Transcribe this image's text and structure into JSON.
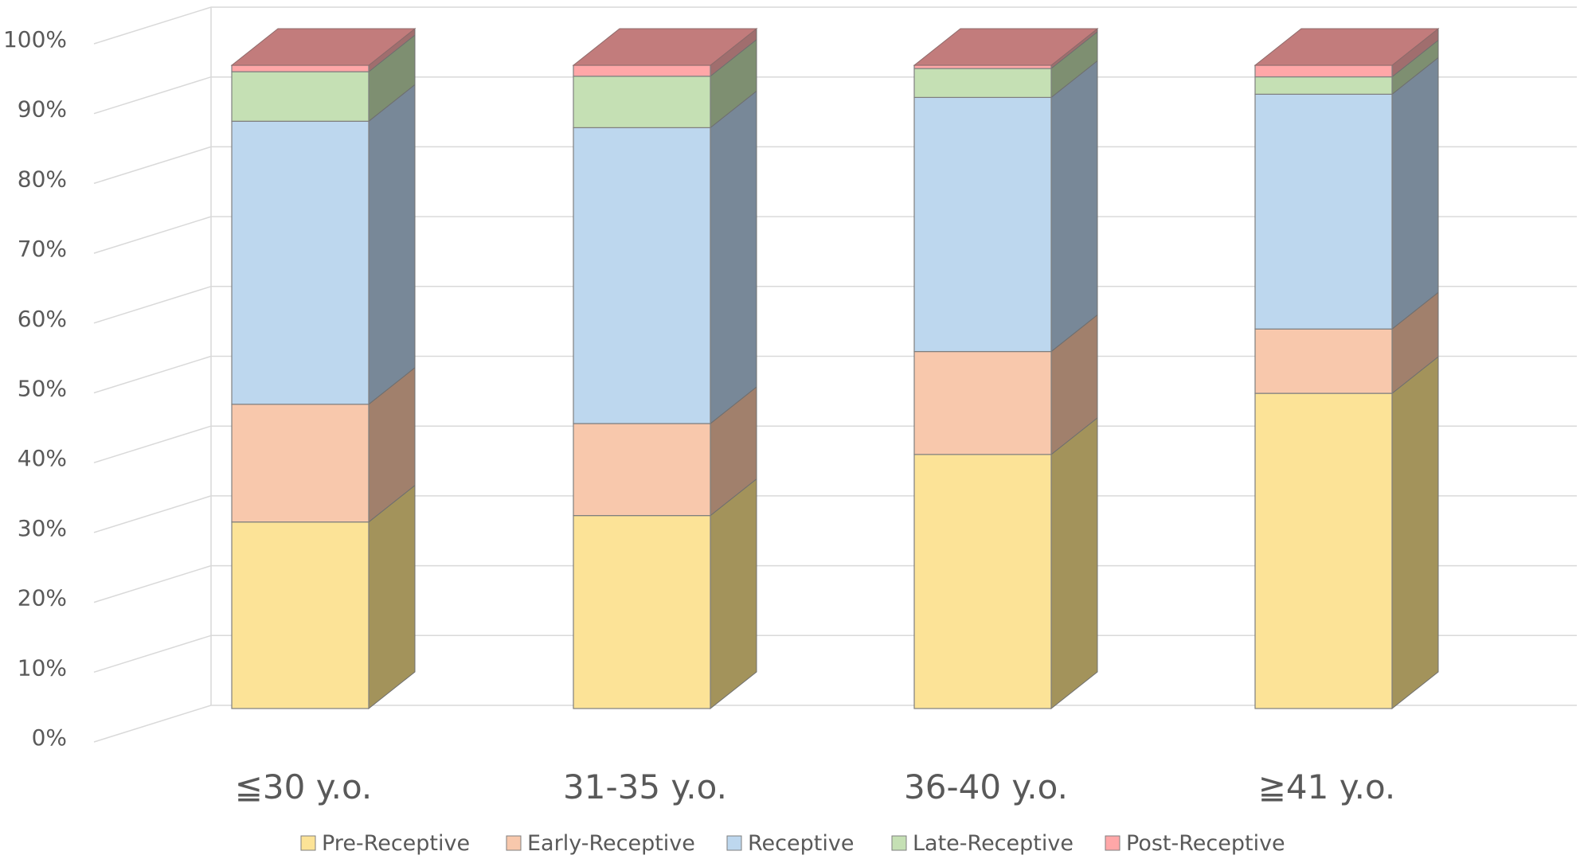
{
  "chart_data": {
    "type": "bar",
    "stacked": true,
    "three_d": true,
    "categories": [
      "≦30 y.o.",
      "31-35 y.o.",
      "36-40 y.o.",
      "≧41 y.o."
    ],
    "series": [
      {
        "name": "Pre-Receptive",
        "color": "#FCE397",
        "side_color": "#A3935B",
        "values": [
          29.0,
          30.0,
          39.5,
          49.0
        ]
      },
      {
        "name": "Early-Receptive",
        "color": "#F8C8AC",
        "side_color": "#A1806C",
        "values": [
          18.3,
          14.3,
          16.0,
          10.0
        ]
      },
      {
        "name": "Receptive",
        "color": "#BDD7EE",
        "side_color": "#788898",
        "values": [
          44.0,
          46.0,
          39.5,
          36.5
        ]
      },
      {
        "name": "Late-Receptive",
        "color": "#C5E0B4",
        "side_color": "#7E8F71",
        "values": [
          7.7,
          8.0,
          4.5,
          2.7
        ]
      },
      {
        "name": "Post-Receptive",
        "color": "#FFA7A8",
        "side_color": "#A06E6E",
        "values": [
          1.0,
          1.7,
          0.5,
          1.8
        ]
      }
    ],
    "top_color": "#C27C7C",
    "ylim": [
      0,
      100
    ],
    "yticks": [
      "0%",
      "10%",
      "20%",
      "30%",
      "40%",
      "50%",
      "60%",
      "70%",
      "80%",
      "90%",
      "100%"
    ],
    "title": "",
    "xlabel": "",
    "ylabel": "",
    "grid": true,
    "legend_position": "bottom"
  }
}
